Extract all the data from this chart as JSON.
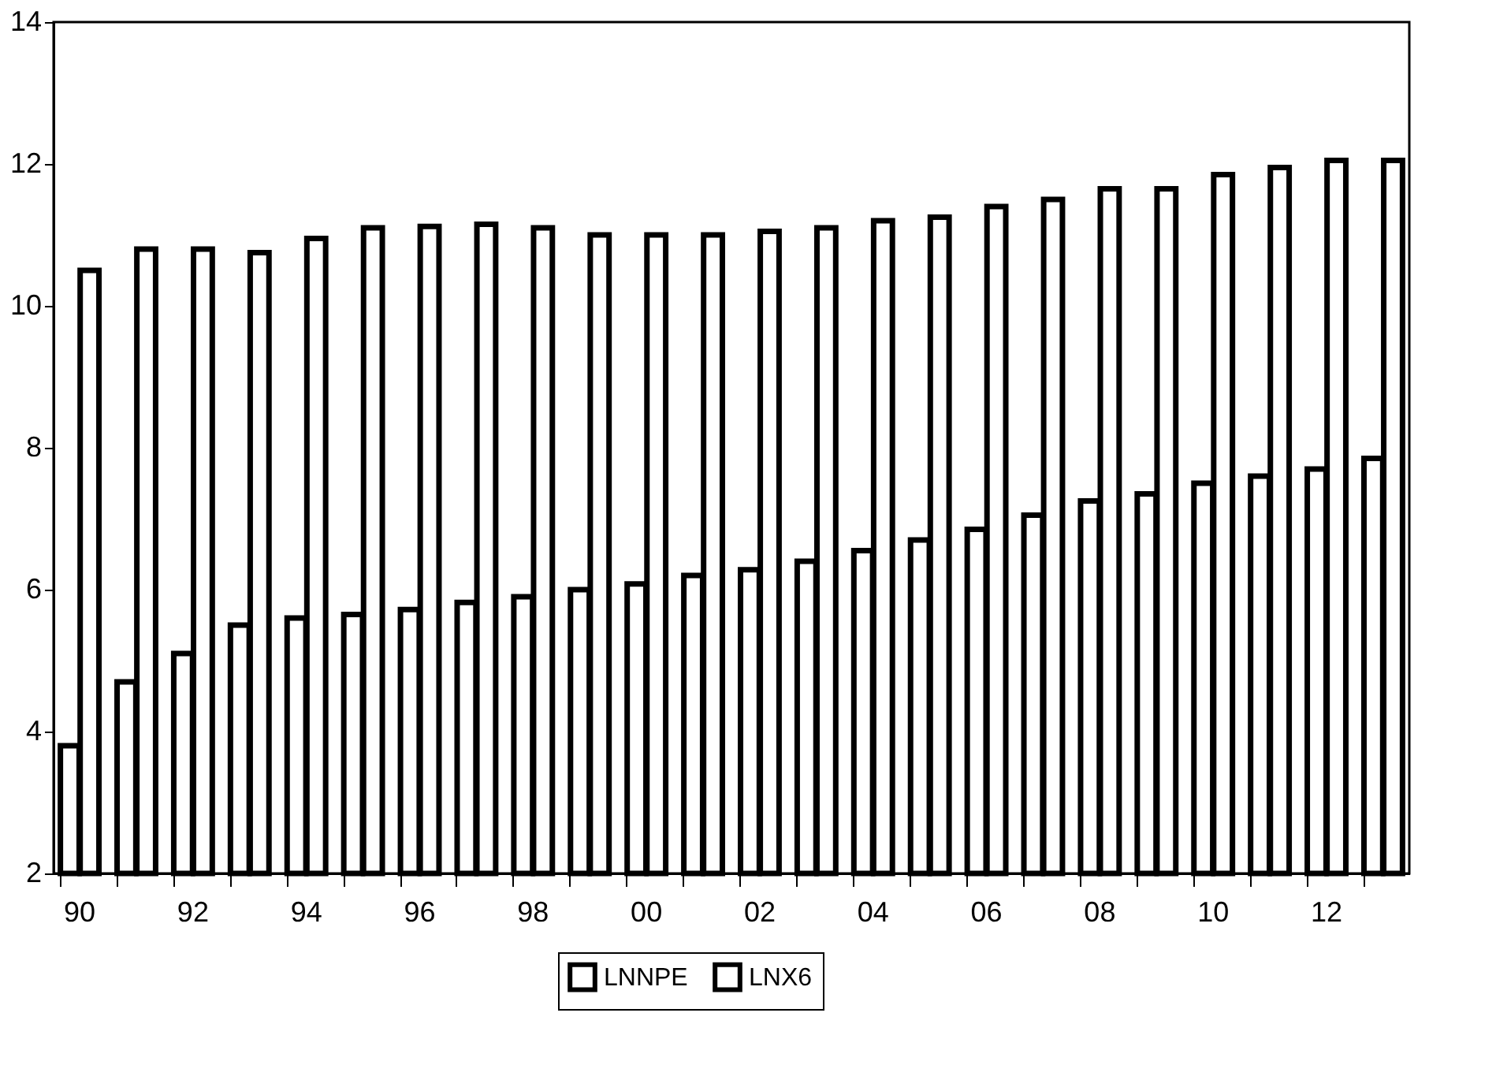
{
  "chart_data": {
    "type": "bar",
    "categories": [
      "90",
      null,
      "92",
      null,
      "94",
      null,
      "96",
      null,
      "98",
      null,
      "00",
      null,
      "02",
      null,
      "04",
      null,
      "06",
      null,
      "08",
      null,
      "10",
      null,
      "12",
      null
    ],
    "series": [
      {
        "name": "LNNPE",
        "color": "#000000",
        "values": [
          3.8,
          4.7,
          5.1,
          5.5,
          5.6,
          5.65,
          5.72,
          5.82,
          5.9,
          6.0,
          6.08,
          6.2,
          6.28,
          6.4,
          6.55,
          6.7,
          6.85,
          7.05,
          7.25,
          7.35,
          7.5,
          7.6,
          7.7,
          7.85
        ]
      },
      {
        "name": "LNX6",
        "color": "#000000",
        "values": [
          10.5,
          10.8,
          10.8,
          10.75,
          10.95,
          11.1,
          11.12,
          11.15,
          11.1,
          11.0,
          11.0,
          11.0,
          11.05,
          11.1,
          11.2,
          11.25,
          11.4,
          11.5,
          11.65,
          11.65,
          11.85,
          11.95,
          12.05,
          12.05
        ]
      }
    ],
    "ylim": [
      2,
      14
    ],
    "yticks": [
      2,
      4,
      6,
      8,
      10,
      12,
      14
    ],
    "grid": false,
    "legend": "bottom"
  }
}
